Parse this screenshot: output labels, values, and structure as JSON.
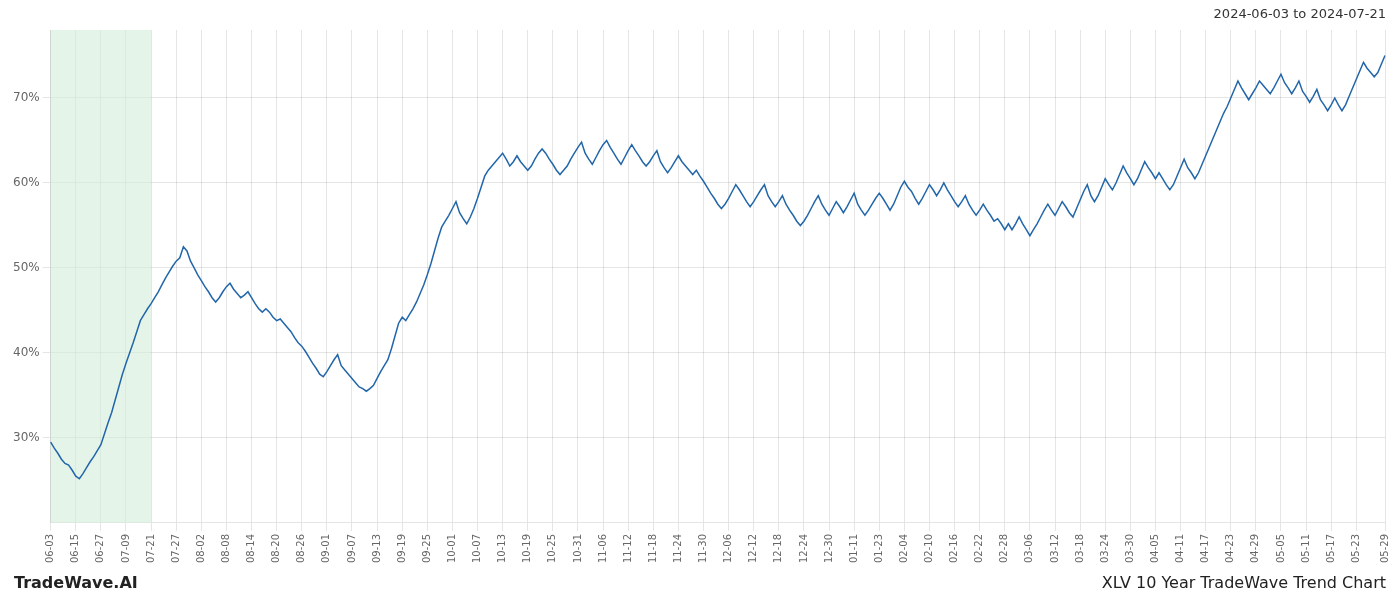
{
  "chart_data": {
    "type": "line",
    "title": "XLV 10 Year TradeWave Trend Chart",
    "subtitle": "2024-06-03 to 2024-07-21",
    "annotations": [
      "TradeWave.AI"
    ],
    "color": "#2266aa",
    "grid": true,
    "ylim": [
      20,
      78
    ],
    "yticks": [
      {
        "value": 30,
        "label": "30%"
      },
      {
        "value": 40,
        "label": "40%"
      },
      {
        "value": 50,
        "label": "50%"
      },
      {
        "value": 60,
        "label": "60%"
      },
      {
        "value": 70,
        "label": "70%"
      }
    ],
    "shade": {
      "from": "06-03",
      "to": "07-21",
      "color": "#d4edda"
    },
    "categories": [
      "06-03",
      null,
      null,
      null,
      null,
      null,
      null,
      "06-15",
      null,
      null,
      null,
      null,
      null,
      null,
      "06-27",
      null,
      null,
      null,
      null,
      null,
      null,
      "07-09",
      null,
      null,
      null,
      null,
      null,
      null,
      "07-21",
      null,
      null,
      null,
      null,
      null,
      null,
      "07-27",
      null,
      null,
      null,
      null,
      null,
      null,
      "08-02",
      null,
      null,
      null,
      null,
      null,
      null,
      "08-08",
      null,
      null,
      null,
      null,
      null,
      null,
      "08-14",
      null,
      null,
      null,
      null,
      null,
      null,
      "08-20",
      null,
      null,
      null,
      null,
      null,
      null,
      "08-26",
      null,
      null,
      null,
      null,
      null,
      null,
      "09-01",
      null,
      null,
      null,
      null,
      null,
      null,
      "09-07",
      null,
      null,
      null,
      null,
      null,
      null,
      "09-13",
      null,
      null,
      null,
      null,
      null,
      null,
      "09-19",
      null,
      null,
      null,
      null,
      null,
      null,
      "09-25",
      null,
      null,
      null,
      null,
      null,
      null,
      "10-01",
      null,
      null,
      null,
      null,
      null,
      null,
      "10-07",
      null,
      null,
      null,
      null,
      null,
      null,
      "10-13",
      null,
      null,
      null,
      null,
      null,
      null,
      "10-19",
      null,
      null,
      null,
      null,
      null,
      null,
      "10-25",
      null,
      null,
      null,
      null,
      null,
      null,
      "10-31",
      null,
      null,
      null,
      null,
      null,
      null,
      "11-06",
      null,
      null,
      null,
      null,
      null,
      null,
      "11-12",
      null,
      null,
      null,
      null,
      null,
      null,
      "11-18",
      null,
      null,
      null,
      null,
      null,
      null,
      "11-24",
      null,
      null,
      null,
      null,
      null,
      null,
      "11-30",
      null,
      null,
      null,
      null,
      null,
      null,
      "12-06",
      null,
      null,
      null,
      null,
      null,
      null,
      "12-12",
      null,
      null,
      null,
      null,
      null,
      null,
      "12-18",
      null,
      null,
      null,
      null,
      null,
      null,
      "12-24",
      null,
      null,
      null,
      null,
      null,
      null,
      "12-30",
      null,
      null,
      null,
      null,
      null,
      null,
      "01-11",
      null,
      null,
      null,
      null,
      null,
      null,
      "01-23",
      null,
      null,
      null,
      null,
      null,
      null,
      "02-04",
      null,
      null,
      null,
      null,
      null,
      null,
      "02-10",
      null,
      null,
      null,
      null,
      null,
      null,
      "02-16",
      null,
      null,
      null,
      null,
      null,
      null,
      "02-22",
      null,
      null,
      null,
      null,
      null,
      null,
      "02-28",
      null,
      null,
      null,
      null,
      null,
      null,
      "03-06",
      null,
      null,
      null,
      null,
      null,
      null,
      "03-12",
      null,
      null,
      null,
      null,
      null,
      null,
      "03-18",
      null,
      null,
      null,
      null,
      null,
      null,
      "03-24",
      null,
      null,
      null,
      null,
      null,
      null,
      "03-30",
      null,
      null,
      null,
      null,
      null,
      null,
      "04-05",
      null,
      null,
      null,
      null,
      null,
      null,
      "04-11",
      null,
      null,
      null,
      null,
      null,
      null,
      "04-17",
      null,
      null,
      null,
      null,
      null,
      null,
      "04-23",
      null,
      null,
      null,
      null,
      null,
      null,
      "04-29",
      null,
      null,
      null,
      null,
      null,
      null,
      "05-05",
      null,
      null,
      null,
      null,
      null,
      null,
      "05-11",
      null,
      null,
      null,
      null,
      null,
      null,
      "05-17",
      null,
      null,
      null,
      null,
      null,
      null,
      "05-23",
      null,
      null,
      null,
      null,
      null,
      null,
      null,
      "05-29"
    ],
    "values": [
      29.5,
      28.8,
      28.2,
      27.5,
      27.0,
      26.8,
      26.2,
      25.5,
      25.2,
      25.8,
      26.5,
      27.2,
      27.8,
      28.5,
      29.2,
      30.5,
      31.8,
      33.0,
      34.5,
      36.0,
      37.5,
      38.8,
      40.0,
      41.2,
      42.5,
      43.8,
      44.5,
      45.2,
      45.8,
      46.5,
      47.2,
      48.0,
      48.8,
      49.5,
      50.2,
      50.8,
      51.2,
      52.5,
      52.0,
      50.8,
      50.0,
      49.2,
      48.5,
      47.8,
      47.2,
      46.5,
      46.0,
      46.5,
      47.2,
      47.8,
      48.2,
      47.5,
      47.0,
      46.5,
      46.8,
      47.2,
      46.5,
      45.8,
      45.2,
      44.8,
      45.2,
      44.8,
      44.2,
      43.8,
      44.0,
      43.5,
      43.0,
      42.5,
      41.8,
      41.2,
      40.8,
      40.2,
      39.5,
      38.8,
      38.2,
      37.5,
      37.2,
      37.8,
      38.5,
      39.2,
      39.8,
      38.5,
      38.0,
      37.5,
      37.0,
      36.5,
      36.0,
      35.8,
      35.5,
      35.8,
      36.2,
      37.0,
      37.8,
      38.5,
      39.2,
      40.5,
      42.0,
      43.5,
      44.2,
      43.8,
      44.5,
      45.2,
      46.0,
      47.0,
      48.0,
      49.2,
      50.5,
      52.0,
      53.5,
      54.8,
      55.5,
      56.2,
      57.0,
      57.8,
      56.5,
      55.8,
      55.2,
      56.0,
      57.0,
      58.2,
      59.5,
      60.8,
      61.5,
      62.0,
      62.5,
      63.0,
      63.5,
      62.8,
      62.0,
      62.5,
      63.2,
      62.5,
      62.0,
      61.5,
      62.0,
      62.8,
      63.5,
      64.0,
      63.5,
      62.8,
      62.2,
      61.5,
      61.0,
      61.5,
      62.0,
      62.8,
      63.5,
      64.2,
      64.8,
      63.5,
      62.8,
      62.2,
      63.0,
      63.8,
      64.5,
      65.0,
      64.2,
      63.5,
      62.8,
      62.2,
      63.0,
      63.8,
      64.5,
      63.8,
      63.2,
      62.5,
      62.0,
      62.5,
      63.2,
      63.8,
      62.5,
      61.8,
      61.2,
      61.8,
      62.5,
      63.2,
      62.5,
      62.0,
      61.5,
      61.0,
      61.5,
      60.8,
      60.2,
      59.5,
      58.8,
      58.2,
      57.5,
      57.0,
      57.5,
      58.2,
      59.0,
      59.8,
      59.2,
      58.5,
      57.8,
      57.2,
      57.8,
      58.5,
      59.2,
      59.8,
      58.5,
      57.8,
      57.2,
      57.8,
      58.5,
      57.5,
      56.8,
      56.2,
      55.5,
      55.0,
      55.5,
      56.2,
      57.0,
      57.8,
      58.5,
      57.5,
      56.8,
      56.2,
      57.0,
      57.8,
      57.2,
      56.5,
      57.2,
      58.0,
      58.8,
      57.5,
      56.8,
      56.2,
      56.8,
      57.5,
      58.2,
      58.8,
      58.2,
      57.5,
      56.8,
      57.5,
      58.5,
      59.5,
      60.2,
      59.5,
      59.0,
      58.2,
      57.5,
      58.2,
      59.0,
      59.8,
      59.2,
      58.5,
      59.2,
      60.0,
      59.2,
      58.5,
      57.8,
      57.2,
      57.8,
      58.5,
      57.5,
      56.8,
      56.2,
      56.8,
      57.5,
      56.8,
      56.2,
      55.5,
      55.8,
      55.2,
      54.5,
      55.2,
      54.5,
      55.2,
      56.0,
      55.2,
      54.5,
      53.8,
      54.5,
      55.2,
      56.0,
      56.8,
      57.5,
      56.8,
      56.2,
      57.0,
      57.8,
      57.2,
      56.5,
      56.0,
      57.0,
      58.0,
      59.0,
      59.8,
      58.5,
      57.8,
      58.5,
      59.5,
      60.5,
      59.8,
      59.2,
      60.0,
      61.0,
      62.0,
      61.2,
      60.5,
      59.8,
      60.5,
      61.5,
      62.5,
      61.8,
      61.2,
      60.5,
      61.2,
      60.5,
      59.8,
      59.2,
      59.8,
      60.8,
      61.8,
      62.8,
      61.8,
      61.2,
      60.5,
      61.2,
      62.2,
      63.2,
      64.2,
      65.2,
      66.2,
      67.2,
      68.2,
      69.0,
      70.0,
      71.0,
      72.0,
      71.2,
      70.5,
      69.8,
      70.5,
      71.2,
      72.0,
      71.5,
      71.0,
      70.5,
      71.2,
      72.0,
      72.8,
      71.8,
      71.2,
      70.5,
      71.2,
      72.0,
      70.8,
      70.2,
      69.5,
      70.2,
      71.0,
      69.8,
      69.2,
      68.5,
      69.2,
      70.0,
      69.2,
      68.5,
      69.2,
      70.2,
      71.2,
      72.2,
      73.2,
      74.2,
      73.5,
      73.0,
      72.5,
      73.0,
      74.0,
      75.0
    ]
  }
}
